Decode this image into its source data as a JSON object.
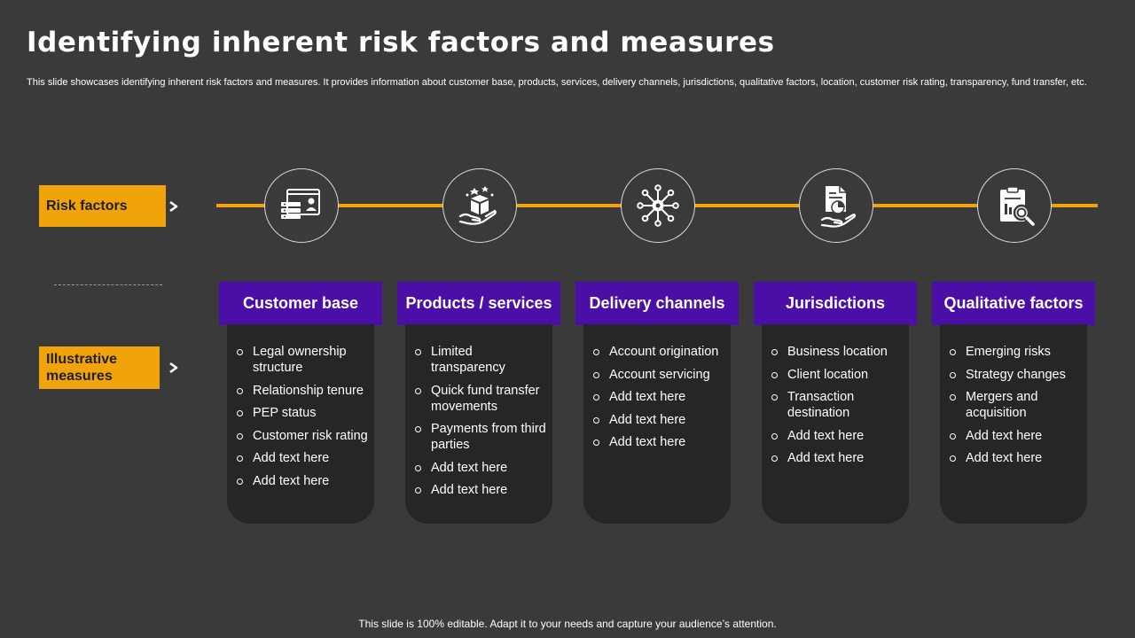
{
  "title": "Identifying inherent risk factors and measures",
  "subtitle": "This slide showcases identifying inherent risk factors and measures. It provides information about customer base, products, services, delivery channels, jurisdictions, qualitative factors, location, customer risk rating, transparency, fund transfer, etc.",
  "labels": {
    "risk_factors": "Risk  factors",
    "illustrative_measures": "Illustrative measures"
  },
  "colors": {
    "background": "#3a3a3a",
    "accent_yellow": "#f0a30a",
    "header_purple": "#4b0fa8",
    "card_dark": "#262626"
  },
  "columns": [
    {
      "icon": "customer-profile-icon",
      "header": "Customer base",
      "items": [
        "Legal ownership structure",
        "Relationship tenure",
        "PEP status",
        "Customer risk rating",
        "Add text here",
        "Add text here"
      ]
    },
    {
      "icon": "product-box-hand-icon",
      "header": "Products / services",
      "items": [
        "Limited transparency",
        "Quick fund transfer movements",
        "Payments from third parties",
        "Add text here",
        "Add text here"
      ]
    },
    {
      "icon": "network-hub-icon",
      "header": "Delivery channels",
      "items": [
        "Account origination",
        "Account servicing",
        "Add text here",
        "Add text here",
        "Add text here"
      ]
    },
    {
      "icon": "document-hand-icon",
      "header": "Jurisdictions",
      "items": [
        "Business location",
        "Client location",
        "Transaction destination",
        "Add text here",
        "Add text here"
      ]
    },
    {
      "icon": "clipboard-search-icon",
      "header": "Qualitative factors",
      "items": [
        "Emerging risks",
        "Strategy changes",
        "Mergers and acquisition",
        "Add text here",
        "Add text here"
      ]
    }
  ],
  "footer": "This slide is 100% editable. Adapt it to your needs and capture your audience’s attention."
}
